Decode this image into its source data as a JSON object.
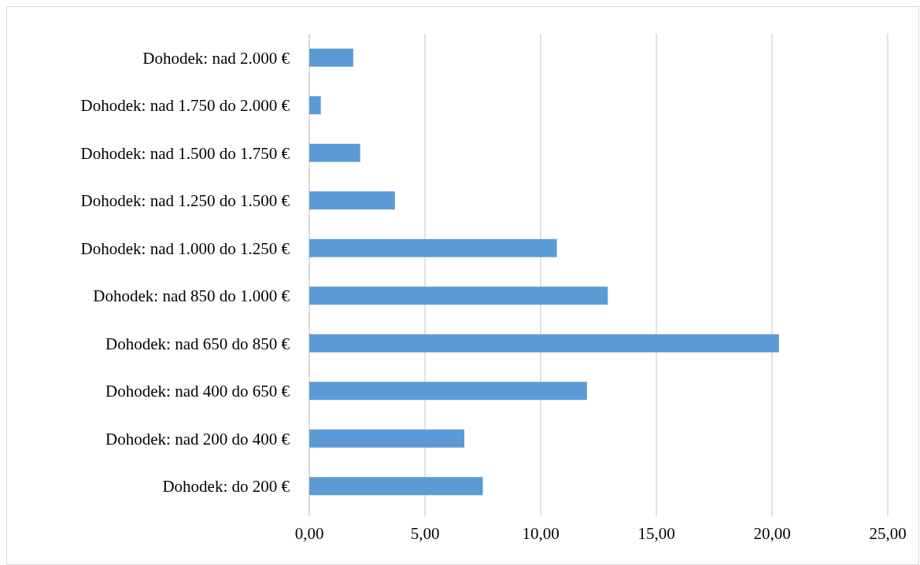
{
  "chart_data": {
    "type": "bar",
    "orientation": "horizontal",
    "categories": [
      "Dohodek: nad 2.000 €",
      "Dohodek: nad 1.750 do 2.000 €",
      "Dohodek: nad 1.500 do 1.750 €",
      "Dohodek: nad 1.250 do 1.500 €",
      "Dohodek: nad 1.000 do 1.250 €",
      "Dohodek: nad 850 do 1.000 €",
      "Dohodek: nad 650 do 850 €",
      "Dohodek: nad 400 do 650 €",
      "Dohodek: nad 200 do 400 €",
      "Dohodek: do 200 €"
    ],
    "values": [
      1.9,
      0.5,
      2.2,
      3.7,
      10.7,
      12.9,
      20.3,
      12.0,
      6.7,
      7.5
    ],
    "color": "#5b9bd5",
    "xlim": [
      0,
      25
    ],
    "xticks": [
      {
        "value": 0,
        "label": "0,00"
      },
      {
        "value": 5,
        "label": "5,00"
      },
      {
        "value": 10,
        "label": "10,00"
      },
      {
        "value": 15,
        "label": "15,00"
      },
      {
        "value": 20,
        "label": "20,00"
      },
      {
        "value": 25,
        "label": "25,00"
      }
    ],
    "grid": "x"
  }
}
